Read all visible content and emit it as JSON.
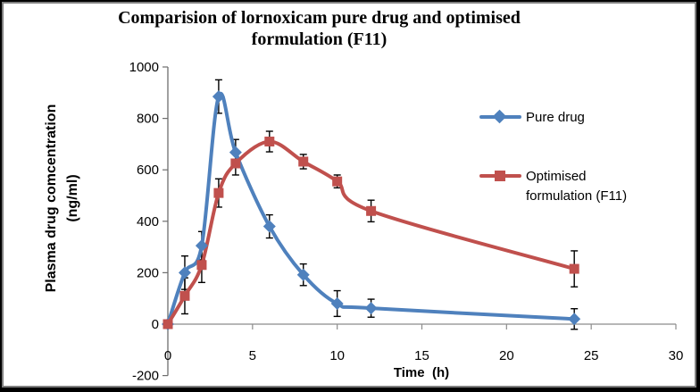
{
  "chart_data": {
    "type": "line",
    "title": "Comparision of lornoxicam pure drug and optimised formulation (F11)",
    "title_lines": [
      "Comparision of lornoxicam pure drug and optimised",
      "formulation (F11)"
    ],
    "xlabel": "Time  (h)",
    "ylabel": "Plasma drug comcentration (ng/ml)",
    "ylabel_lines": [
      "Plasma drug comcentration",
      "(ng/ml)"
    ],
    "x": [
      0,
      1,
      2,
      3,
      4,
      6,
      8,
      10,
      12,
      24
    ],
    "series": [
      {
        "name": "Pure drug",
        "color": "#4F81BD",
        "marker": "diamond",
        "values": [
          0,
          200,
          305,
          885,
          668,
          380,
          192,
          80,
          62,
          20
        ],
        "error": [
          0,
          65,
          55,
          65,
          50,
          45,
          42,
          50,
          35,
          40
        ]
      },
      {
        "name": "Optimised formulation (F11)",
        "color": "#C0504D",
        "marker": "square",
        "values": [
          0,
          110,
          230,
          510,
          625,
          710,
          632,
          555,
          440,
          215
        ],
        "error": [
          0,
          70,
          68,
          55,
          45,
          40,
          28,
          25,
          42,
          70
        ]
      }
    ],
    "xlim": [
      0,
      30
    ],
    "ylim": [
      -200,
      1000
    ],
    "xticks": [
      0,
      5,
      10,
      15,
      20,
      25,
      30
    ],
    "yticks": [
      -200,
      0,
      200,
      400,
      600,
      800,
      1000
    ],
    "grid": false,
    "error_bars": true,
    "smooth_lines": true,
    "legend_position": "right-inside",
    "legend": {
      "items": [
        {
          "label": "Pure drug",
          "lines": [
            "Pure drug"
          ],
          "color": "#4F81BD",
          "marker": "diamond"
        },
        {
          "label": "Optimised formulation (F11)",
          "lines": [
            "Optimised",
            "formulation (F11)"
          ],
          "color": "#C0504D",
          "marker": "square"
        }
      ]
    },
    "axis_color": "#8c8c8c",
    "error_bar_color": "#000000"
  }
}
